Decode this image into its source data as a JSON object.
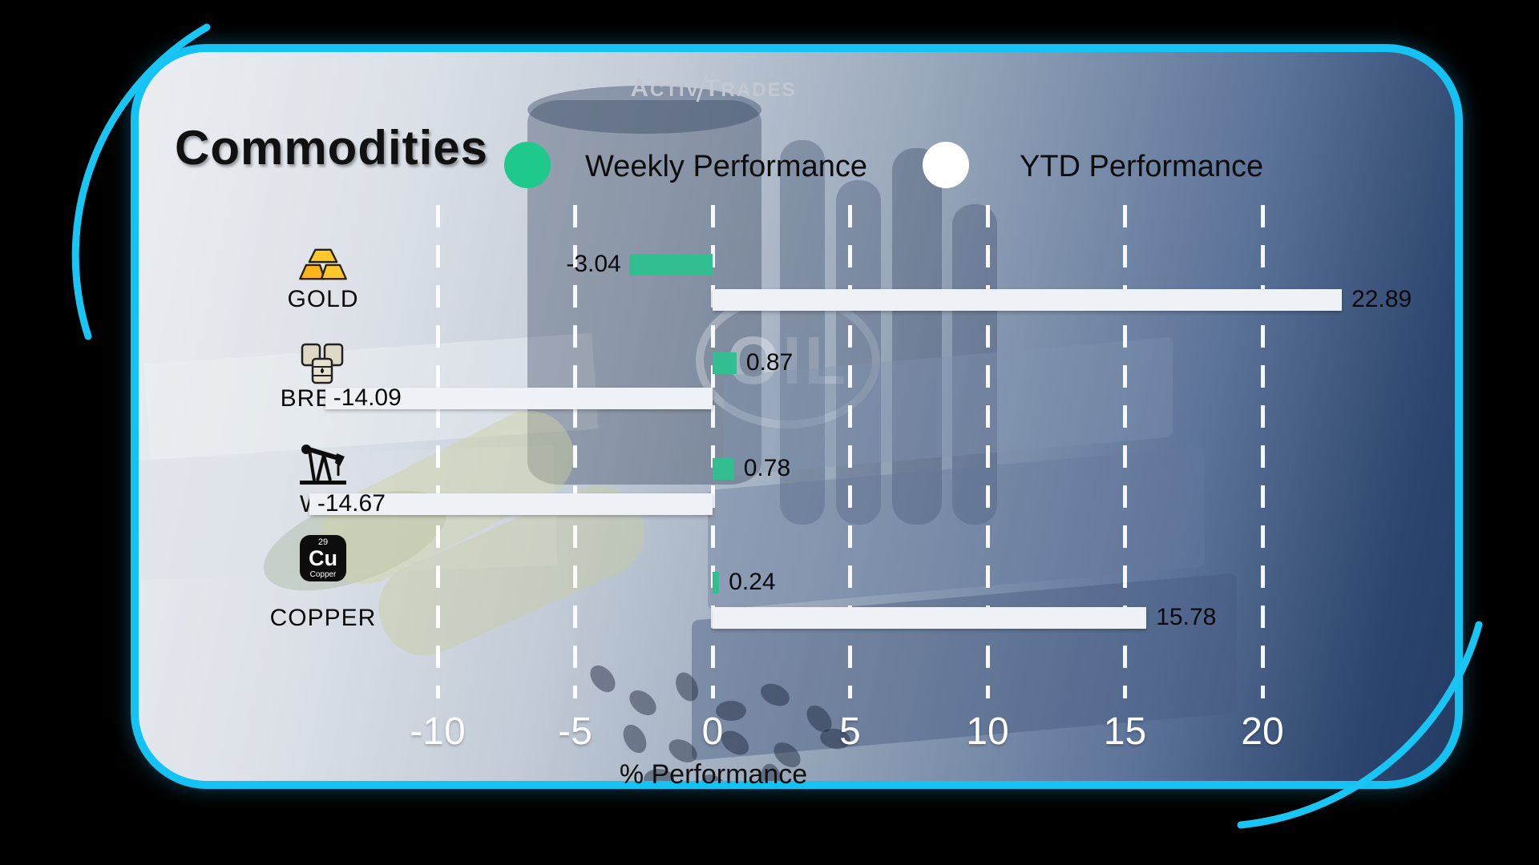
{
  "brand": {
    "logo_a": "A",
    "logo_ctiv": "CTIV",
    "logo_t": "T",
    "logo_rades": "RADES"
  },
  "header": {
    "title": "Commodities",
    "legend": [
      {
        "label": "Weekly Performance",
        "color": "#1ec98b"
      },
      {
        "label": "YTD Performance",
        "color": "#ffffff"
      }
    ]
  },
  "background": {
    "oil_text": "OIL"
  },
  "chart_data": {
    "type": "bar",
    "orientation": "horizontal",
    "categories": [
      "GOLD",
      "BRENT",
      "WTI",
      "COPPER"
    ],
    "series": [
      {
        "name": "Weekly Performance",
        "color": "#33be92",
        "values": [
          -3.04,
          0.87,
          0.78,
          0.24
        ]
      },
      {
        "name": "YTD Performance",
        "color": "#eef1f5",
        "values": [
          22.89,
          -14.09,
          -14.67,
          15.78
        ]
      }
    ],
    "x_ticks": [
      -10,
      -5,
      0,
      5,
      10,
      15,
      20
    ],
    "xlim": [
      -15,
      22.5
    ],
    "xlabel": "% Performance",
    "grid": "dashed-vertical-white",
    "legend_position": "top"
  },
  "rows": [
    {
      "label": "GOLD",
      "icon": "gold-bars-icon",
      "weekly_label": "-3.04",
      "ytd_label": "22.89"
    },
    {
      "label": "BRENT",
      "icon": "oil-barrels-icon",
      "weekly_label": "0.87",
      "ytd_label": "-14.09"
    },
    {
      "label": "WTI",
      "icon": "pumpjack-icon",
      "weekly_label": "0.78",
      "ytd_label": "-14.67"
    },
    {
      "label": "COPPER",
      "icon": "copper-element-icon",
      "weekly_label": "0.24",
      "ytd_label": "15.78",
      "badge": {
        "number": "29",
        "symbol": "Cu",
        "name": "Copper"
      }
    }
  ]
}
